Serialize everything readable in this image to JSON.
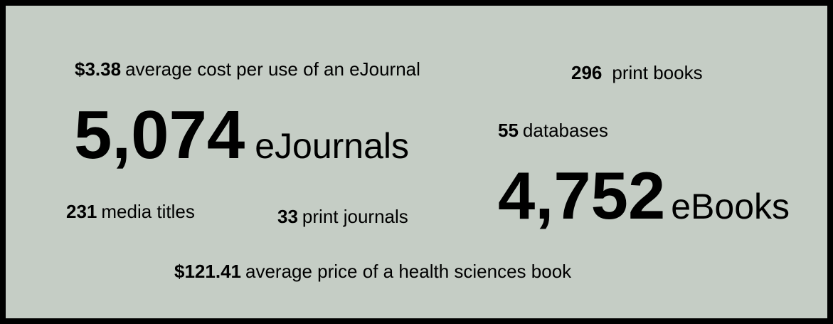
{
  "stats": [
    {
      "value": "$3.38",
      "label": "average cost per use of an eJournal"
    },
    {
      "value": "296",
      "label": "print books"
    },
    {
      "value": "5,074",
      "label": "eJournals"
    },
    {
      "value": "55",
      "label": "databases"
    },
    {
      "value": "4,752",
      "label": "eBooks"
    },
    {
      "value": "231",
      "label": "media titles"
    },
    {
      "value": "33",
      "label": "print journals"
    },
    {
      "value": "$121.41",
      "label": "average price of a health sciences book"
    }
  ]
}
